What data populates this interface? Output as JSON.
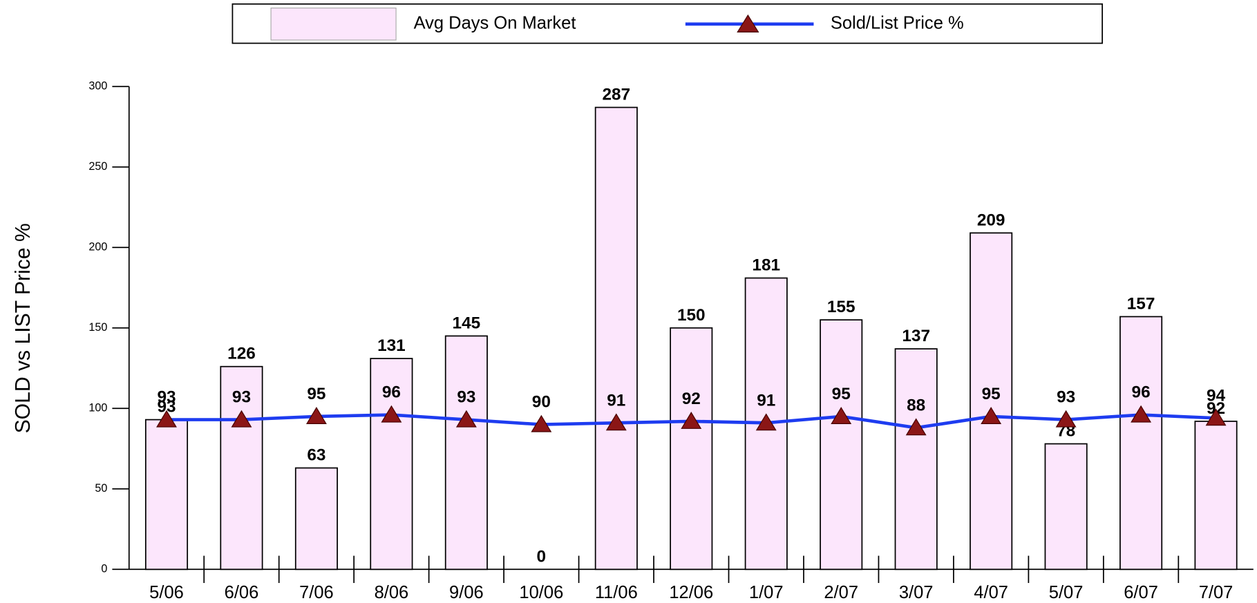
{
  "chart_data": {
    "type": "bar",
    "y_label": "SOLD vs LIST Price %",
    "categories": [
      "5/06",
      "6/06",
      "7/06",
      "8/06",
      "9/06",
      "10/06",
      "11/06",
      "12/06",
      "1/07",
      "2/07",
      "3/07",
      "4/07",
      "5/07",
      "6/07",
      "7/07"
    ],
    "series": [
      {
        "name": "Avg Days On Market",
        "type": "bar",
        "color": "#fce6fc",
        "values": [
          93,
          126,
          63,
          131,
          145,
          0,
          287,
          150,
          181,
          155,
          137,
          209,
          78,
          157,
          92
        ]
      },
      {
        "name": "Sold/List Price %",
        "type": "line",
        "color": "#1e3cf0",
        "marker_color": "#8b1616",
        "values": [
          93,
          93,
          95,
          96,
          93,
          90,
          91,
          92,
          91,
          95,
          88,
          95,
          93,
          96,
          94
        ]
      }
    ],
    "ylim": [
      0,
      300
    ],
    "yticks": [
      0,
      50,
      100,
      150,
      200,
      250,
      300
    ]
  }
}
